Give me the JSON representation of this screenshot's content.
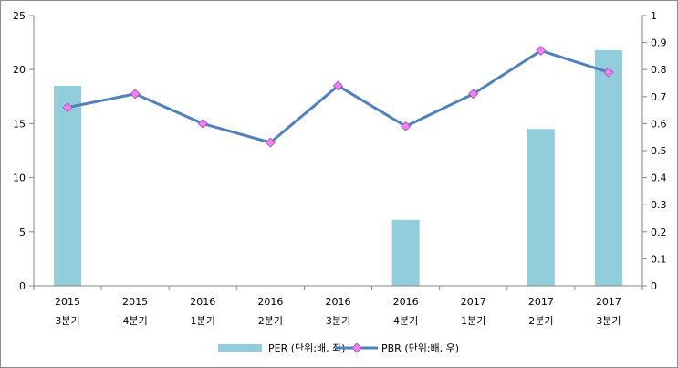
{
  "chart_data": {
    "type": "bar+line",
    "categories": [
      [
        "2015",
        "3분기"
      ],
      [
        "2015",
        "4분기"
      ],
      [
        "2016",
        "1분기"
      ],
      [
        "2016",
        "2분기"
      ],
      [
        "2016",
        "3분기"
      ],
      [
        "2016",
        "4분기"
      ],
      [
        "2017",
        "1분기"
      ],
      [
        "2017",
        "2분기"
      ],
      [
        "2017",
        "3분기"
      ]
    ],
    "series": [
      {
        "name": "PER (단위:배, 좌)",
        "type": "bar",
        "axis": "left",
        "color": "#92CDDC",
        "values": [
          18.5,
          null,
          null,
          null,
          null,
          6.1,
          null,
          14.5,
          21.8
        ]
      },
      {
        "name": "PBR (단위:배, 우)",
        "type": "line",
        "axis": "right",
        "color": "#4F81BD",
        "marker_color": "#EE82EE",
        "values": [
          0.66,
          0.71,
          0.6,
          0.53,
          0.74,
          0.59,
          0.71,
          0.87,
          0.79
        ]
      }
    ],
    "y_left": {
      "ticks": [
        "0",
        "5",
        "10",
        "15",
        "20",
        "25"
      ],
      "range": [
        0,
        25
      ],
      "step": 5
    },
    "y_right": {
      "ticks": [
        "0",
        "0.1",
        "0.2",
        "0.3",
        "0.4",
        "0.5",
        "0.6",
        "0.7",
        "0.8",
        "0.9",
        "1"
      ],
      "range": [
        0,
        1
      ],
      "step": 0.1
    },
    "grid": false,
    "legend_position": "bottom",
    "title": "",
    "xlabel": "",
    "ylabel": ""
  }
}
